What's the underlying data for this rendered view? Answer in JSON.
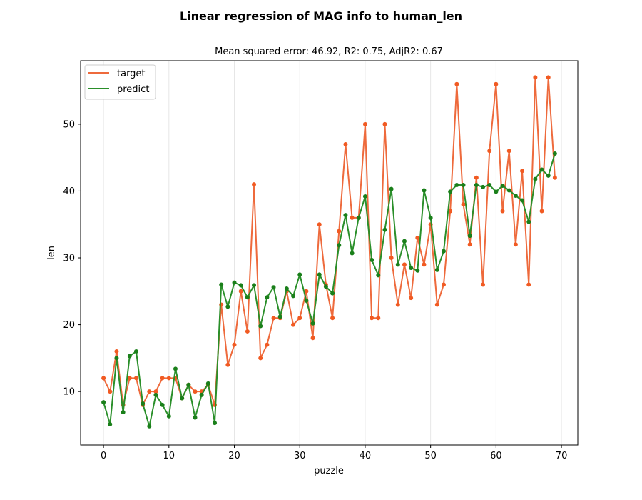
{
  "chart_data": {
    "type": "line",
    "title": "Linear regression of MAG info to human_len",
    "subtitle": "Mean squared error: 46.92, R2: 0.75, AdjR2: 0.67",
    "xlabel": "puzzle",
    "ylabel": "len",
    "xlim": [
      -3.5,
      72.5
    ],
    "ylim": [
      2,
      59.5
    ],
    "x_ticks": [
      0,
      10,
      20,
      30,
      40,
      50,
      60,
      70
    ],
    "x_tick_labels": [
      "0",
      "10",
      "20",
      "30",
      "40",
      "50",
      "60",
      "70"
    ],
    "y_ticks": [
      10,
      20,
      30,
      40,
      50
    ],
    "y_tick_labels": [
      "10",
      "20",
      "30",
      "40",
      "50"
    ],
    "grid": "vertical",
    "legend_position": "top-left",
    "x": [
      0,
      1,
      2,
      3,
      4,
      5,
      6,
      7,
      8,
      9,
      10,
      11,
      12,
      13,
      14,
      15,
      16,
      17,
      18,
      19,
      20,
      21,
      22,
      23,
      24,
      25,
      26,
      27,
      28,
      29,
      30,
      31,
      32,
      33,
      34,
      35,
      36,
      37,
      38,
      39,
      40,
      41,
      42,
      43,
      44,
      45,
      46,
      47,
      48,
      49,
      50,
      51,
      52,
      53,
      54,
      55,
      56,
      57,
      58,
      59,
      60,
      61,
      62,
      63,
      64,
      65,
      66,
      67,
      68,
      69
    ],
    "series": [
      {
        "name": "target",
        "color": "#f15a22",
        "line_color": "#ee6a3c",
        "values": [
          12,
          10,
          16,
          8,
          12,
          12,
          8,
          10,
          10,
          12,
          12,
          12,
          9,
          11,
          10,
          10,
          11,
          8,
          23,
          14,
          17,
          25,
          19,
          41,
          15,
          17,
          21,
          21,
          25,
          20,
          21,
          25,
          18,
          35,
          26,
          21,
          34,
          47,
          36,
          36,
          50,
          21,
          21,
          50,
          30,
          23,
          29,
          24,
          33,
          29,
          35,
          23,
          26,
          37,
          56,
          38,
          32,
          42,
          26,
          46,
          56,
          37,
          46,
          32,
          43,
          26,
          57,
          37,
          57,
          42
        ]
      },
      {
        "name": "predict",
        "color": "#1a7f1a",
        "line_color": "#2a8f2a",
        "values": [
          8.4,
          5.1,
          15.0,
          6.9,
          15.3,
          16.0,
          8.2,
          4.8,
          9.5,
          8.0,
          6.3,
          13.4,
          9.0,
          11.0,
          6.1,
          9.5,
          11.2,
          5.3,
          26.0,
          22.7,
          26.3,
          25.9,
          24.1,
          25.9,
          19.8,
          24.1,
          25.6,
          21.2,
          25.4,
          24.3,
          27.5,
          23.6,
          20.2,
          27.5,
          25.7,
          24.7,
          31.9,
          36.4,
          30.7,
          36.0,
          39.2,
          29.7,
          27.4,
          34.2,
          40.3,
          29.0,
          32.5,
          28.5,
          28.1,
          40.1,
          36.0,
          28.2,
          31.0,
          39.9,
          40.9,
          40.9,
          33.3,
          40.9,
          40.6,
          40.9,
          39.9,
          40.8,
          40.1,
          39.3,
          38.6,
          35.4,
          41.8,
          43.2,
          42.3,
          45.6
        ]
      }
    ]
  }
}
